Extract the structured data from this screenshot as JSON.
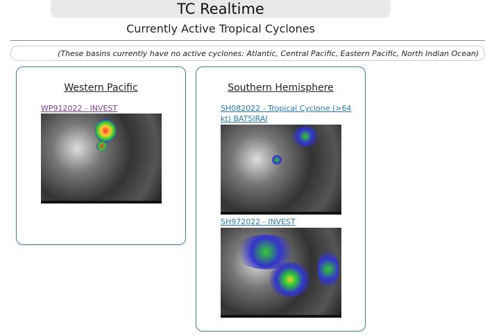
{
  "header": {
    "title": "TC Realtime",
    "subtitle": "Currently Active Tropical Cyclones"
  },
  "notice": "(These basins currently have no active cyclones: Atlantic, Central Pacific, Eastern Pacific, North Indian Ocean)",
  "basins": [
    {
      "name": "Western Pacific",
      "storms": [
        {
          "label": "WP912022 - INVEST",
          "visited": true
        }
      ]
    },
    {
      "name": "Southern Hemisphere",
      "storms": [
        {
          "label": "SH082022 - Tropical Cyclone (>64 kt) BATSIRAI",
          "visited": false
        },
        {
          "label": "SH972022 - INVEST",
          "visited": false
        }
      ]
    }
  ],
  "colors": {
    "card_border": "#3d7a99",
    "link": "#2878b8",
    "visited_link": "#7a3d8f"
  }
}
